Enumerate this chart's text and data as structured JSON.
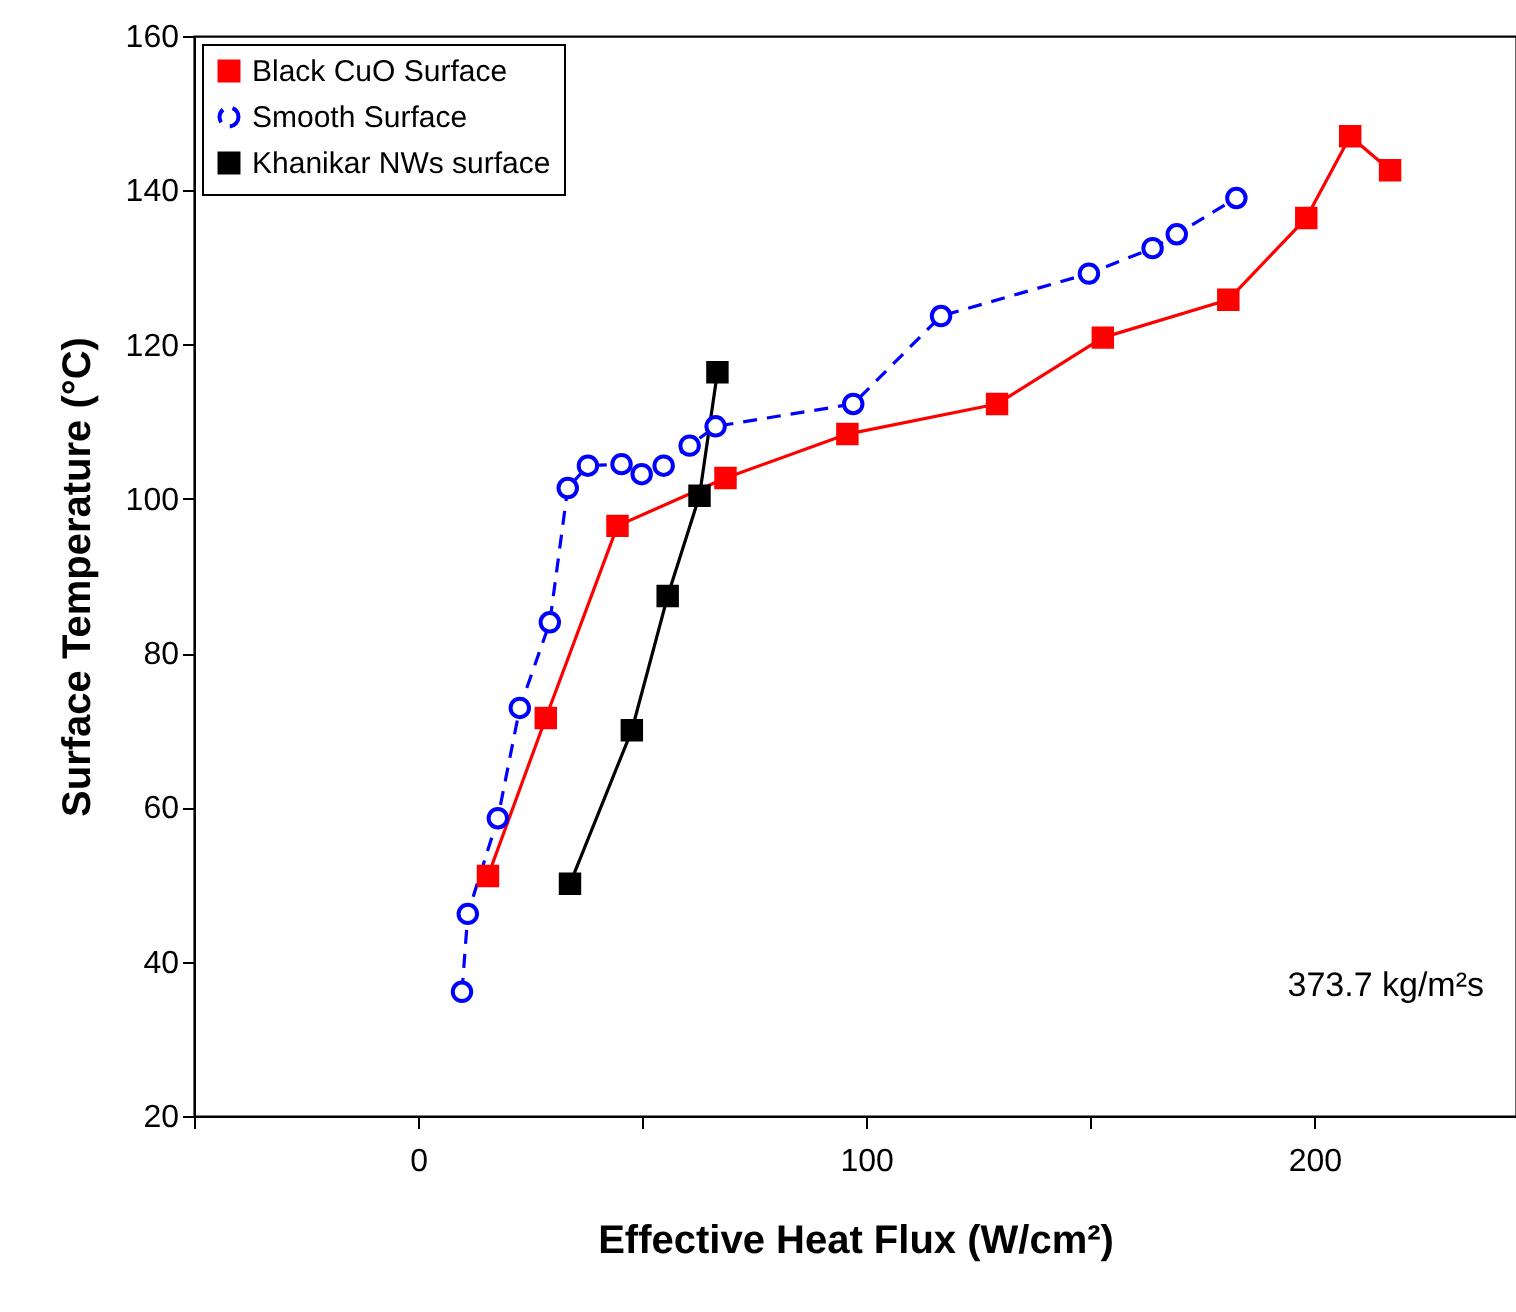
{
  "chart_data": {
    "type": "line",
    "xlabel": "Effective Heat Flux (W/cm²)",
    "ylabel": "Surface Temperature (°C)",
    "xlim": [
      -50,
      245
    ],
    "xticks": [
      {
        "value": -50,
        "label": null
      },
      0,
      {
        "value": 50,
        "label": null
      },
      100,
      {
        "value": 150,
        "label": null
      },
      200
    ],
    "ylim": [
      20,
      160
    ],
    "yticks": [
      20,
      40,
      60,
      80,
      100,
      120,
      140,
      160
    ],
    "grid": false,
    "legend": "top left",
    "annotations": [
      "373.7 kg/m²s"
    ],
    "series": [
      {
        "name": "Black CuO Surface",
        "color": "#ff0000",
        "marker": "square",
        "line_style": "solid",
        "x": [
          15.6,
          28.5,
          44.5,
          68.6,
          95.8,
          129.2,
          152.8,
          180.8,
          198.2,
          208.0,
          216.9
        ],
        "values": [
          51.1,
          71.6,
          96.5,
          102.7,
          108.4,
          112.3,
          120.9,
          125.8,
          136.4,
          147.0,
          142.6
        ]
      },
      {
        "name": "Smooth Surface",
        "color": "#0000ff",
        "marker": "circle",
        "line_style": "dashed",
        "x": [
          9.8,
          11.1,
          17.8,
          22.7,
          29.4,
          33.4,
          37.9,
          45.4,
          49.9,
          54.8,
          60.6,
          66.4,
          97.1,
          116.7,
          149.7,
          163.9,
          169.3,
          182.6
        ],
        "values": [
          36.1,
          46.2,
          58.6,
          72.9,
          84.0,
          101.4,
          104.3,
          104.5,
          103.2,
          104.3,
          106.9,
          109.4,
          112.3,
          123.7,
          129.2,
          132.5,
          134.3,
          139.0
        ]
      },
      {
        "name": "Khanikar NWs surface",
        "color": "#000000",
        "marker": "square",
        "line_style": "solid",
        "x": [
          33.9,
          47.7,
          55.7,
          62.8,
          66.8
        ],
        "values": [
          50.1,
          70.0,
          87.4,
          100.4,
          116.4
        ]
      }
    ]
  }
}
